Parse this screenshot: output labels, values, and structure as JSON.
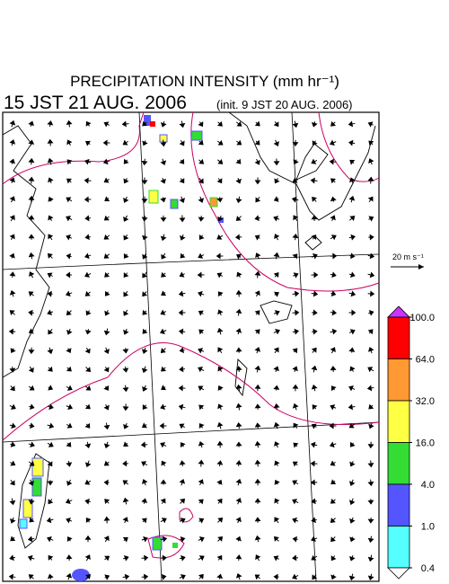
{
  "header": {
    "title": "PRECIPITATION INTENSITY (mm hr⁻¹)",
    "valid_time": "15 JST 21 AUG. 2006",
    "init_time": "(init. 9 JST 20 AUG. 2006)"
  },
  "wind_legend": {
    "label": "20 m s⁻¹"
  },
  "colorbar": {
    "levels": [
      {
        "value": 100,
        "label": "100.0"
      },
      {
        "value": 64,
        "label": "64.0"
      },
      {
        "value": 32,
        "label": "32.0"
      },
      {
        "value": 16,
        "label": "16.0"
      },
      {
        "value": 4,
        "label": "4.0"
      },
      {
        "value": 1,
        "label": "1.0"
      },
      {
        "value": 0.4,
        "label": "0.4"
      }
    ],
    "colors": [
      "#cc33ff",
      "#ff0000",
      "#ff9933",
      "#ffff44",
      "#33dd33",
      "#5555ff",
      "#55ffff",
      "#ffffff"
    ]
  }
}
